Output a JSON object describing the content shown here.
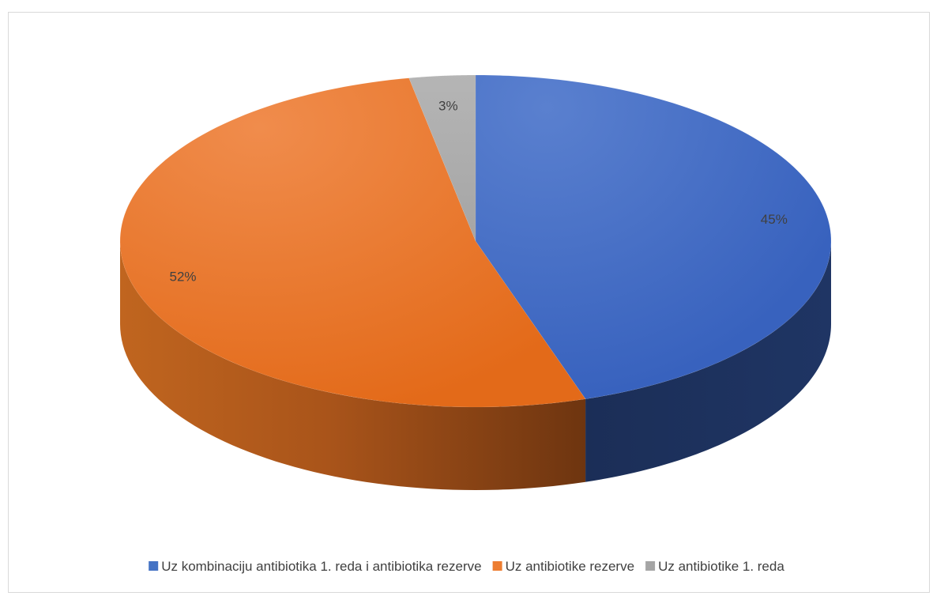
{
  "chart_data": {
    "type": "pie",
    "title": "",
    "style": "3d",
    "legend_position": "bottom",
    "labels": [
      "Uz kombinaciju antibiotika 1. reda i antibiotika rezerve",
      "Uz antibiotike rezerve",
      "Uz antibiotike 1. reda"
    ],
    "values": [
      45,
      52,
      3
    ],
    "data_labels": [
      "45%",
      "52%",
      "3%"
    ],
    "colors": [
      "#4472C4",
      "#ED7D31",
      "#A5A5A5"
    ]
  }
}
